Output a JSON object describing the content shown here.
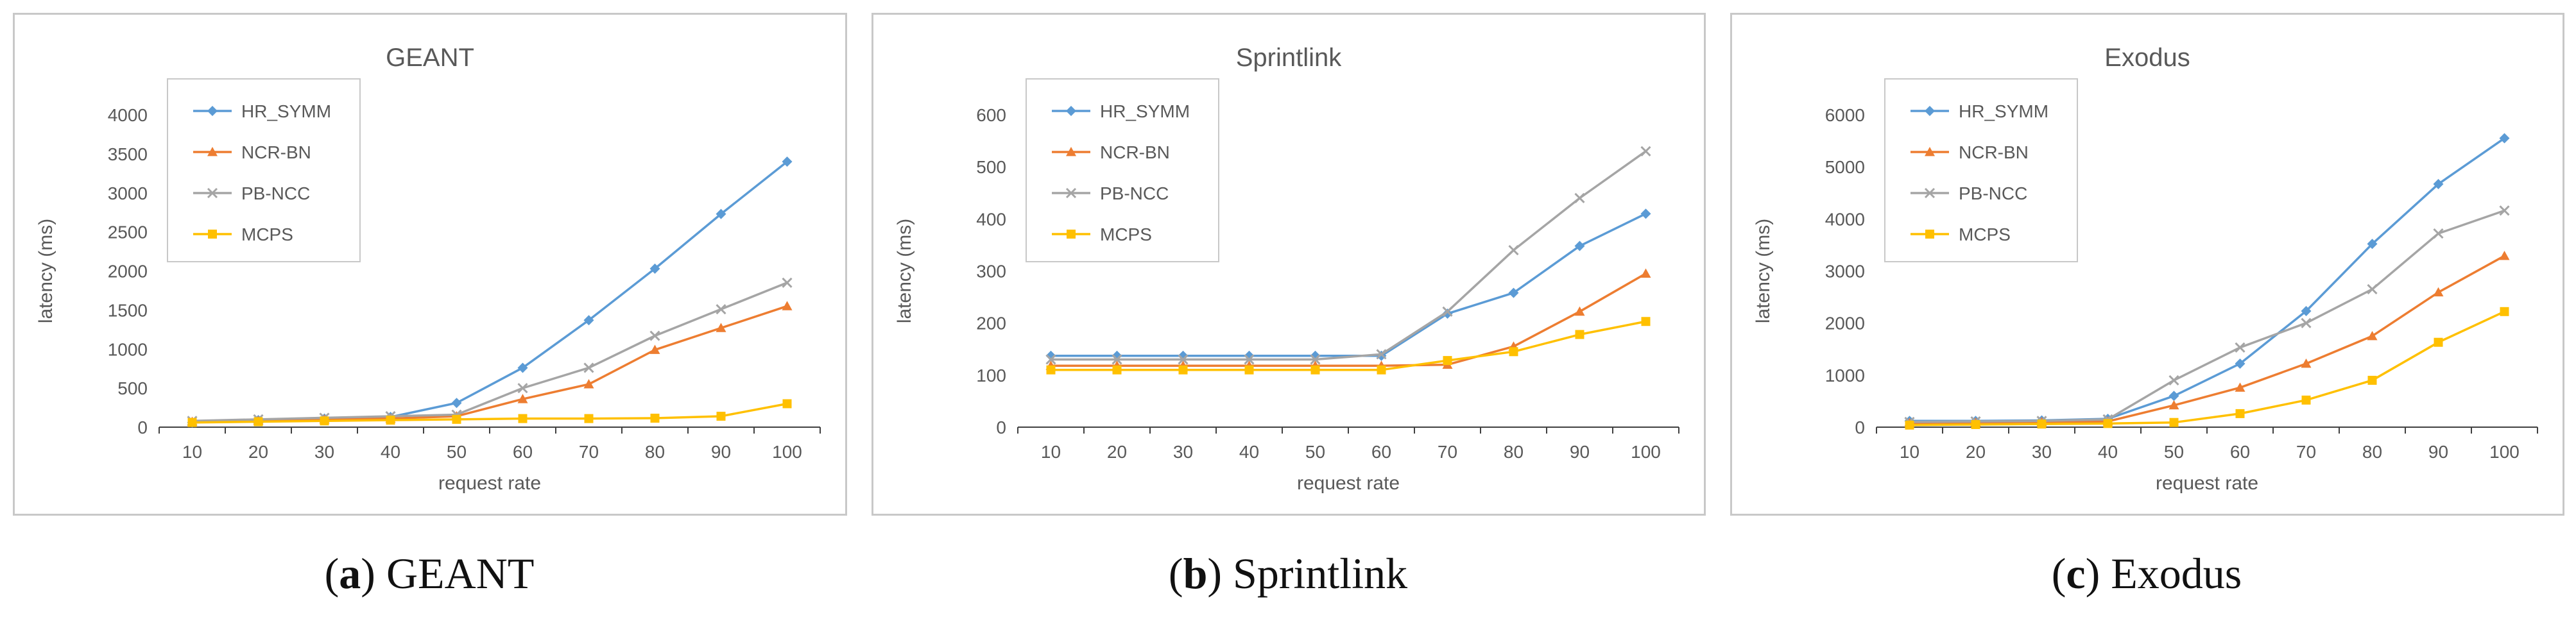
{
  "colors": {
    "HR_SYMM": "#5b9bd5",
    "NCR-BN": "#ed7d31",
    "PB-NCC": "#a5a5a5",
    "MCPS": "#ffc000",
    "grid": "#d9d9d9",
    "axis": "#404040",
    "border": "#c8c8c8"
  },
  "markers": {
    "HR_SYMM": "diamond",
    "NCR-BN": "triangle",
    "PB-NCC": "x",
    "MCPS": "square"
  },
  "captions": [
    {
      "label": "(a)",
      "letter": "a",
      "name": "GEANT"
    },
    {
      "label": "(b)",
      "letter": "b",
      "name": "Sprintlink"
    },
    {
      "label": "(c)",
      "letter": "c",
      "name": "Exodus"
    }
  ],
  "chart_data": [
    {
      "type": "line",
      "title": "GEANT",
      "xlabel": "request rate",
      "ylabel": "latency (ms)",
      "categories": [
        "10",
        "20",
        "30",
        "40",
        "50",
        "60",
        "70",
        "80",
        "90",
        "100"
      ],
      "ylim": [
        0,
        4000
      ],
      "yticks": [
        "0",
        "500",
        "1000",
        "1500",
        "2000",
        "2500",
        "3000",
        "3500",
        "4000"
      ],
      "grid": false,
      "legend_position": "top-left",
      "series": [
        {
          "name": "HR_SYMM",
          "values": [
            60,
            90,
            110,
            130,
            310,
            760,
            1370,
            2030,
            2730,
            3400
          ]
        },
        {
          "name": "NCR-BN",
          "values": [
            70,
            80,
            100,
            110,
            140,
            360,
            550,
            990,
            1270,
            1550
          ]
        },
        {
          "name": "PB-NCC",
          "values": [
            80,
            100,
            120,
            140,
            160,
            500,
            760,
            1170,
            1510,
            1850
          ]
        },
        {
          "name": "MCPS",
          "values": [
            60,
            70,
            80,
            90,
            100,
            110,
            110,
            115,
            140,
            300
          ]
        }
      ]
    },
    {
      "type": "line",
      "title": "Sprintlink",
      "xlabel": "request rate",
      "ylabel": "latency (ms)",
      "categories": [
        "10",
        "20",
        "30",
        "40",
        "50",
        "60",
        "70",
        "80",
        "90",
        "100"
      ],
      "ylim": [
        0,
        600
      ],
      "yticks": [
        "0",
        "100",
        "200",
        "300",
        "400",
        "500",
        "600"
      ],
      "grid": false,
      "legend_position": "top-left",
      "series": [
        {
          "name": "HR_SYMM",
          "values": [
            137,
            137,
            137,
            137,
            137,
            137,
            218,
            258,
            348,
            410
          ]
        },
        {
          "name": "NCR-BN",
          "values": [
            118,
            118,
            118,
            118,
            118,
            118,
            120,
            155,
            222,
            295
          ]
        },
        {
          "name": "PB-NCC",
          "values": [
            130,
            130,
            130,
            130,
            130,
            140,
            222,
            340,
            440,
            530
          ]
        },
        {
          "name": "MCPS",
          "values": [
            110,
            110,
            110,
            110,
            110,
            110,
            128,
            145,
            178,
            203
          ]
        }
      ]
    },
    {
      "type": "line",
      "title": "Exodus",
      "xlabel": "request rate",
      "ylabel": "latency (ms)",
      "categories": [
        "10",
        "20",
        "30",
        "40",
        "50",
        "60",
        "70",
        "80",
        "90",
        "100"
      ],
      "ylim": [
        0,
        6000
      ],
      "yticks": [
        "0",
        "1000",
        "2000",
        "3000",
        "4000",
        "5000",
        "6000"
      ],
      "grid": false,
      "legend_position": "top-left",
      "series": [
        {
          "name": "HR_SYMM",
          "values": [
            120,
            120,
            130,
            160,
            600,
            1220,
            2230,
            3520,
            4670,
            5550
          ]
        },
        {
          "name": "NCR-BN",
          "values": [
            80,
            90,
            100,
            110,
            420,
            760,
            1220,
            1750,
            2590,
            3290
          ]
        },
        {
          "name": "PB-NCC",
          "values": [
            100,
            110,
            120,
            150,
            900,
            1530,
            2000,
            2650,
            3720,
            4160
          ]
        },
        {
          "name": "MCPS",
          "values": [
            40,
            50,
            60,
            70,
            90,
            260,
            520,
            900,
            1630,
            2220
          ]
        }
      ]
    }
  ]
}
